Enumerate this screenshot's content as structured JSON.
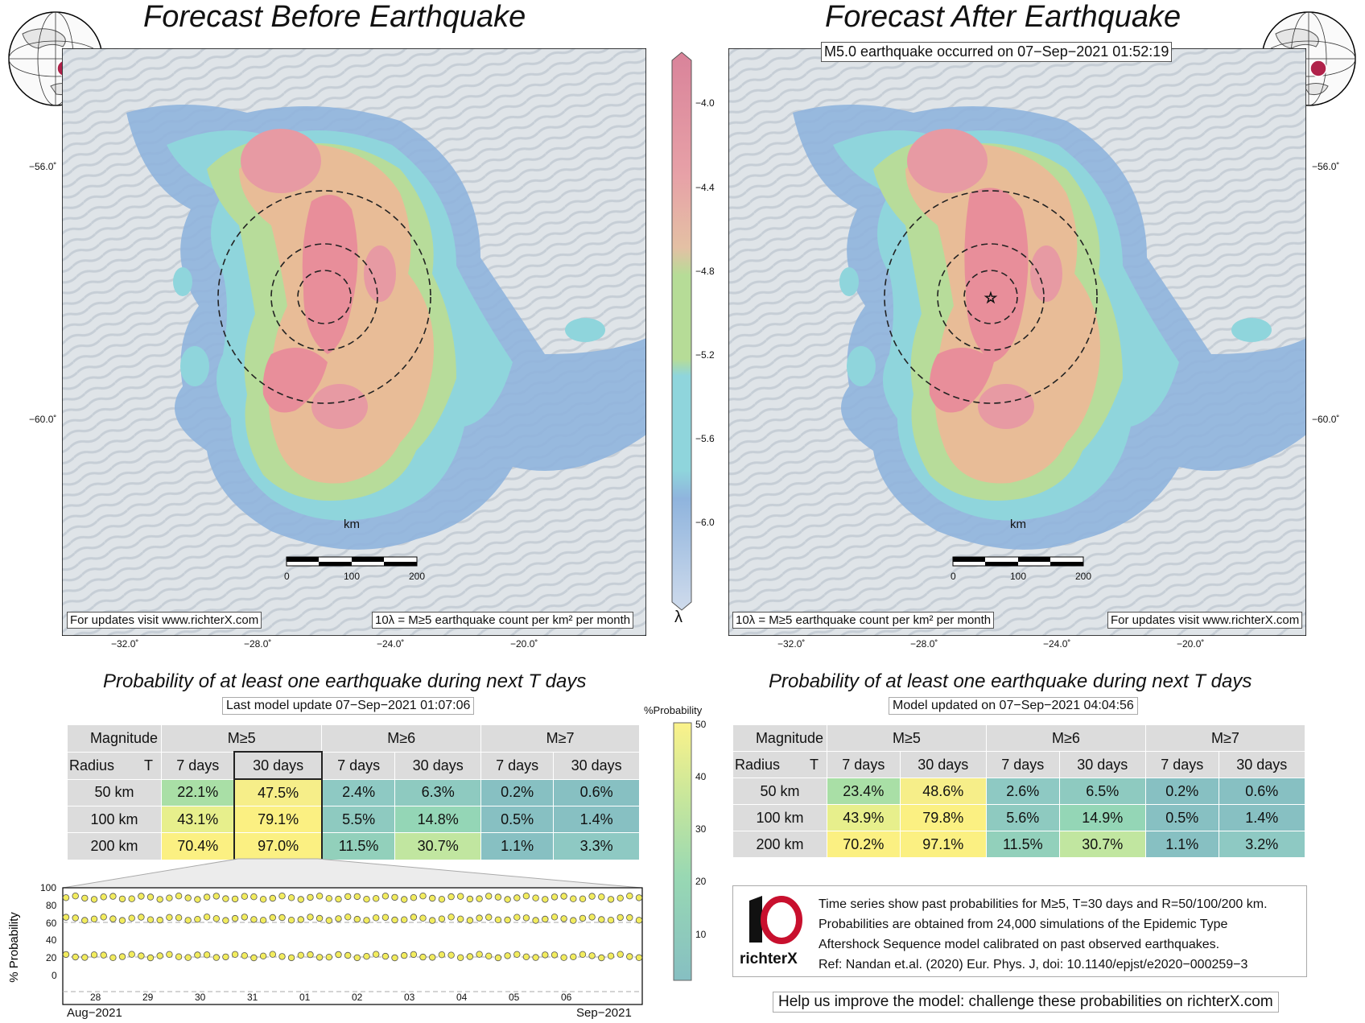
{
  "left_panel": {
    "title": "Forecast Before Earthquake",
    "footer_left": "For updates visit www.richterX.com",
    "footer_right": "10λ = M≥5 earthquake count per km² per month",
    "prob_title": "Probability of at least one earthquake during next T days",
    "prob_subtitle": "Last model update 07−Sep−2021 01:07:06",
    "table": {
      "corner_top": "Magnitude",
      "corner_bottom_left": "Radius",
      "corner_bottom_right": "T",
      "magnitudes": [
        "M≥5",
        "M≥6",
        "M≥7"
      ],
      "periods": [
        "7 days",
        "30 days",
        "7 days",
        "30 days",
        "7 days",
        "30 days"
      ],
      "rows": [
        {
          "radius": "50 km",
          "values": [
            "22.1%",
            "47.5%",
            "2.4%",
            "6.3%",
            "0.2%",
            "0.6%"
          ],
          "colors": [
            "#a9dfa6",
            "#f6ee89",
            "#8ec9c3",
            "#8ecac0",
            "#87c0c2",
            "#87c0c2"
          ]
        },
        {
          "radius": "100 km",
          "values": [
            "43.1%",
            "79.1%",
            "5.5%",
            "14.8%",
            "0.5%",
            "1.4%"
          ],
          "colors": [
            "#e7ef8c",
            "#fbf082",
            "#8ecac0",
            "#94d6b6",
            "#87c0c2",
            "#87c0c2"
          ]
        },
        {
          "radius": "200 km",
          "values": [
            "70.4%",
            "97.0%",
            "11.5%",
            "30.7%",
            "1.1%",
            "3.3%"
          ],
          "colors": [
            "#fbf082",
            "#fbf082",
            "#92d0bb",
            "#c1e6a0",
            "#87c0c2",
            "#8ec9c3"
          ]
        }
      ]
    }
  },
  "right_panel": {
    "title": "Forecast After Earthquake",
    "event_label": "M5.0 earthquake occurred on 07−Sep−2021 01:52:19",
    "footer_left": "10λ = M≥5 earthquake count per km² per month",
    "footer_right": "For updates visit www.richterX.com",
    "prob_title": "Probability of at least one earthquake during next T days",
    "prob_subtitle": "Model updated on 07−Sep−2021 04:04:56",
    "table": {
      "corner_top": "Magnitude",
      "corner_bottom_left": "Radius",
      "corner_bottom_right": "T",
      "magnitudes": [
        "M≥5",
        "M≥6",
        "M≥7"
      ],
      "periods": [
        "7 days",
        "30 days",
        "7 days",
        "30 days",
        "7 days",
        "30 days"
      ],
      "rows": [
        {
          "radius": "50 km",
          "values": [
            "23.4%",
            "48.6%",
            "2.6%",
            "6.5%",
            "0.2%",
            "0.6%"
          ],
          "colors": [
            "#a9dfa6",
            "#f6ee89",
            "#8ec9c3",
            "#8ecac0",
            "#87c0c2",
            "#87c0c2"
          ]
        },
        {
          "radius": "100 km",
          "values": [
            "43.9%",
            "79.8%",
            "5.6%",
            "14.9%",
            "0.5%",
            "1.4%"
          ],
          "colors": [
            "#e7ef8c",
            "#fbf082",
            "#8ecac0",
            "#94d6b6",
            "#87c0c2",
            "#87c0c2"
          ]
        },
        {
          "radius": "200 km",
          "values": [
            "70.2%",
            "97.1%",
            "11.5%",
            "30.7%",
            "1.1%",
            "3.2%"
          ],
          "colors": [
            "#fbf082",
            "#fbf082",
            "#92d0bb",
            "#c1e6a0",
            "#87c0c2",
            "#8ec9c3"
          ]
        }
      ]
    }
  },
  "map": {
    "lat_labels": [
      "−56.0˚",
      "−60.0˚"
    ],
    "lon_labels": [
      "−32.0˚",
      "−28.0˚",
      "−24.0˚",
      "−20.0˚"
    ],
    "scale_unit": "km",
    "scale_ticks": [
      "0",
      "100",
      "200"
    ]
  },
  "colorbar": {
    "ticks": [
      "−4.0",
      "−4.4",
      "−4.8",
      "−5.2",
      "−5.6",
      "−6.0"
    ],
    "symbol": "λ"
  },
  "prob_colorbar": {
    "label": "%Probability",
    "ticks": [
      "50",
      "40",
      "30",
      "20",
      "10"
    ]
  },
  "timeseries": {
    "ylabel": "% Probability",
    "yticks": [
      "100",
      "80",
      "60",
      "40",
      "20",
      "0"
    ],
    "days": [
      "28",
      "29",
      "30",
      "31",
      "01",
      "02",
      "03",
      "04",
      "05",
      "06"
    ],
    "month_left": "Aug−2021",
    "month_right": "Sep−2021"
  },
  "info": {
    "lines": [
      "Time series show past probabilities for M≥5, T=30 days and R=50/100/200 km.",
      "Probabilities are obtained from 24,000 simulations of the Epidemic Type",
      "Aftershock Sequence model calibrated on past observed earthquakes.",
      "Ref: Nandan et.al. (2020) Eur. Phys. J, doi: 10.1140/epjst/e2020−000259−3"
    ],
    "logo_text": "richterX",
    "help_text": "Help us improve the model: challenge these probabilities on richterX.com"
  }
}
